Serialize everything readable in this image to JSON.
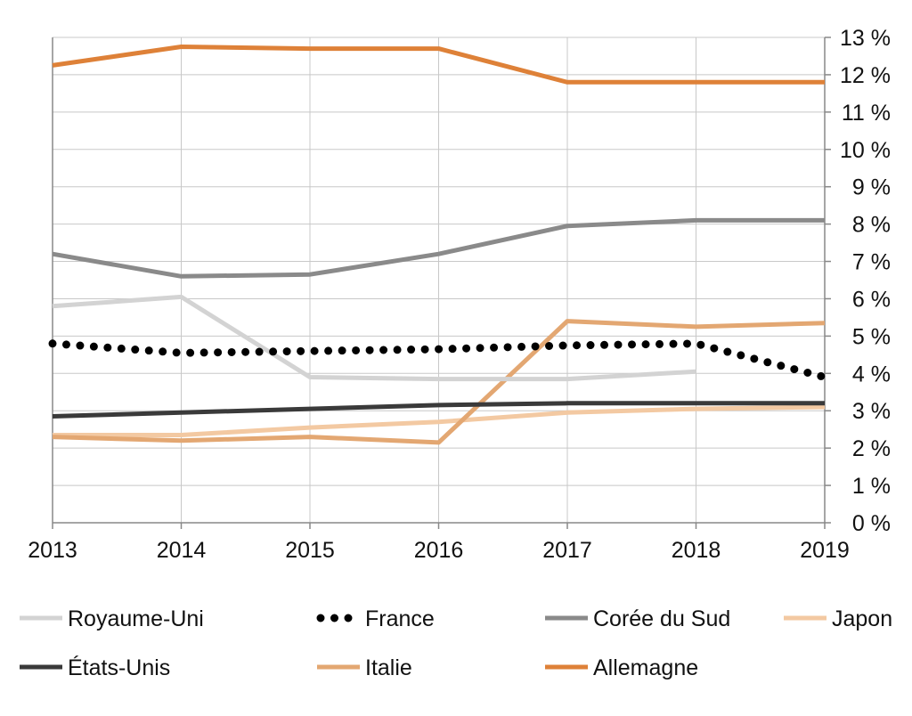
{
  "chart_data": {
    "type": "line",
    "x": [
      "2013",
      "2014",
      "2015",
      "2016",
      "2017",
      "2018",
      "2019"
    ],
    "ylim": [
      0,
      13
    ],
    "yticks": [
      "0 %",
      "1 %",
      "2 %",
      "3 %",
      "4 %",
      "5 %",
      "6 %",
      "7 %",
      "8 %",
      "9 %",
      "10 %",
      "11 %",
      "12 %",
      "13 %"
    ],
    "y_axis_side": "right",
    "grid": true,
    "legend_position": "bottom",
    "series": [
      {
        "name": "Royaume-Uni",
        "color": "#d3d3d3",
        "style": "solid",
        "values": [
          5.8,
          6.05,
          3.9,
          3.85,
          3.85,
          4.05,
          null
        ]
      },
      {
        "name": "France",
        "color": "#000000",
        "style": "dotted",
        "values": [
          4.8,
          4.55,
          4.6,
          4.65,
          4.75,
          4.8,
          3.9
        ]
      },
      {
        "name": "Corée du Sud",
        "color": "#8a8a8a",
        "style": "solid",
        "values": [
          7.2,
          6.6,
          6.65,
          7.2,
          7.95,
          8.1,
          8.1
        ]
      },
      {
        "name": "Japon",
        "color": "#f3c9a2",
        "style": "solid",
        "values": [
          2.35,
          2.35,
          2.55,
          2.7,
          2.95,
          3.05,
          3.1
        ]
      },
      {
        "name": "États-Unis",
        "color": "#3a3a3a",
        "style": "solid",
        "values": [
          2.85,
          2.95,
          3.05,
          3.15,
          3.2,
          3.2,
          3.2
        ]
      },
      {
        "name": "Italie",
        "color": "#e3a772",
        "style": "solid",
        "values": [
          2.3,
          2.2,
          2.3,
          2.15,
          5.4,
          5.25,
          5.35
        ]
      },
      {
        "name": "Allemagne",
        "color": "#de8138",
        "style": "solid",
        "values": [
          12.25,
          12.75,
          12.7,
          12.7,
          11.8,
          11.8,
          11.8
        ]
      }
    ]
  }
}
